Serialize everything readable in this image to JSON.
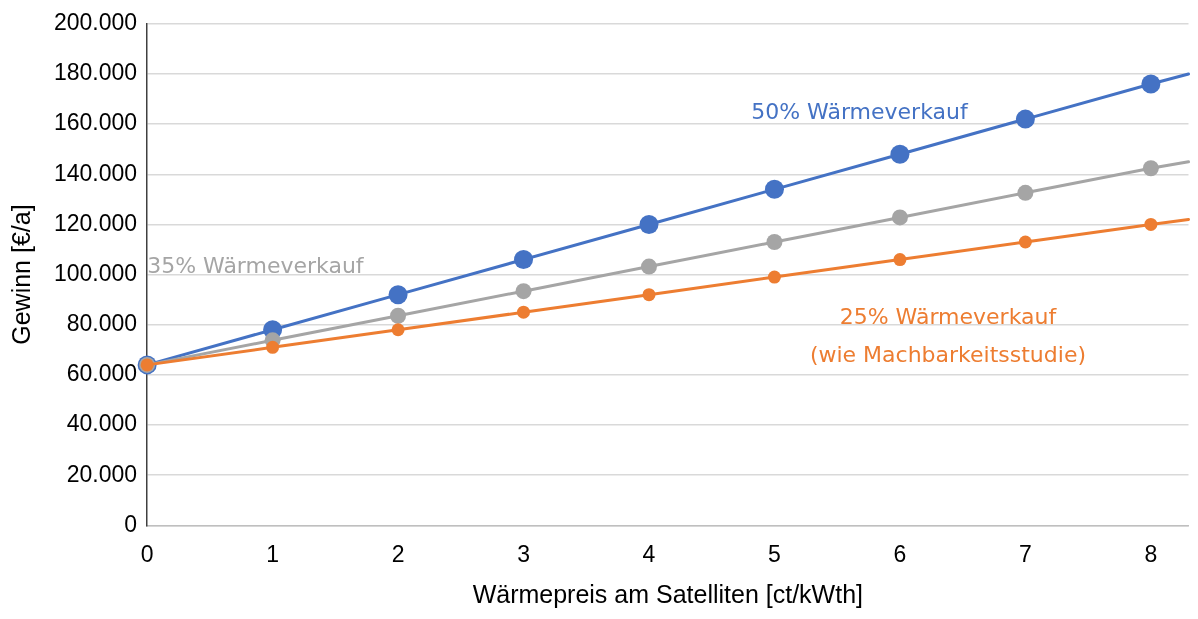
{
  "chart_data": {
    "type": "line",
    "xlabel": "Wärmepreis am Satelliten [ct/kWth]",
    "ylabel": "Gewinn [€/a]",
    "x": [
      0,
      1,
      2,
      3,
      4,
      5,
      6,
      7,
      8,
      8.3
    ],
    "series": [
      {
        "name": "50% Wärmeverkauf",
        "color": "#4472c4",
        "values": [
          64000,
          78000,
          92000,
          106000,
          120000,
          134000,
          148000,
          162000,
          176000,
          180000
        ]
      },
      {
        "name": "35% Wärmeverkauf",
        "color": "#a5a5a5",
        "values": [
          64000,
          73800,
          83600,
          93400,
          103200,
          113000,
          122800,
          132600,
          142400,
          145000
        ]
      },
      {
        "name": "25% Wärmeverkauf\n(wie Machbarkeitsstudie)",
        "color": "#ed7d31",
        "values": [
          64000,
          71000,
          78000,
          85000,
          92000,
          99000,
          106000,
          113000,
          120000,
          122000
        ]
      }
    ],
    "xlim": [
      0,
      8.3
    ],
    "xticks": [
      0,
      1,
      2,
      3,
      4,
      5,
      6,
      7,
      8
    ],
    "ylim": [
      0,
      200000
    ],
    "yticks": [
      0,
      {
        "value": 20000,
        "label": "20.000"
      },
      {
        "value": 40000,
        "label": "40.000"
      },
      {
        "value": 60000,
        "label": "60.000"
      },
      {
        "value": 80000,
        "label": "80.000"
      },
      {
        "value": 100000,
        "label": "100.000"
      },
      {
        "value": 120000,
        "label": "120.000"
      },
      {
        "value": 140000,
        "label": "140.000"
      },
      {
        "value": 160000,
        "label": "160.000"
      },
      {
        "value": 180000,
        "label": "180.000"
      },
      {
        "value": 200000,
        "label": "200.000"
      }
    ],
    "grid": "y",
    "legend": false,
    "marker": "circle",
    "line_style": "solid"
  }
}
